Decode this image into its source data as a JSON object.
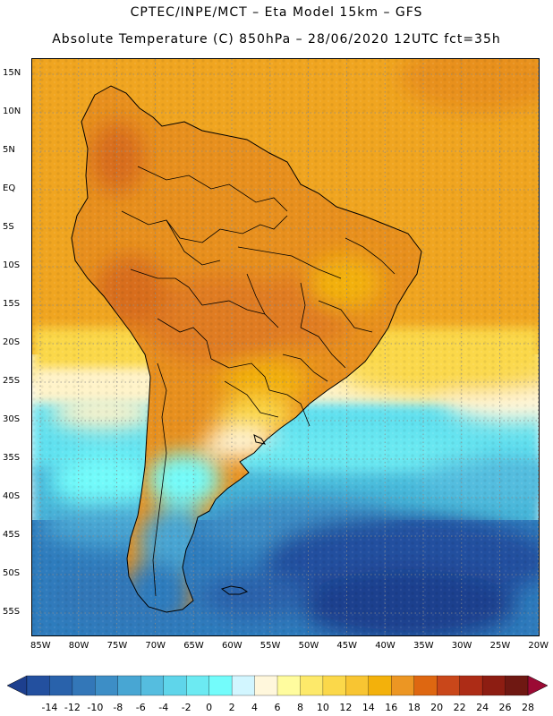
{
  "header": {
    "title_line1": "CPTEC/INPE/MCT –  Eta Model 15km – GFS",
    "title_line2": "Absolute Temperature (C) 850hPa – 28/06/2020 12UTC fct=35h"
  },
  "axes": {
    "latitudes": [
      "15N",
      "10N",
      "5N",
      "EQ",
      "5S",
      "10S",
      "15S",
      "20S",
      "25S",
      "30S",
      "35S",
      "40S",
      "45S",
      "50S",
      "55S"
    ],
    "longitudes": [
      "85W",
      "80W",
      "75W",
      "70W",
      "65W",
      "60W",
      "55W",
      "50W",
      "45W",
      "40W",
      "35W",
      "30W",
      "25W",
      "20W"
    ]
  },
  "colorbar": {
    "labels": [
      "-14",
      "-12",
      "-10",
      "-8",
      "-6",
      "-4",
      "-2",
      "0",
      "2",
      "4",
      "6",
      "8",
      "10",
      "12",
      "14",
      "16",
      "18",
      "20",
      "22",
      "24",
      "26",
      "28"
    ],
    "colors": [
      "#1d3f8e",
      "#23509f",
      "#2962ab",
      "#3377b8",
      "#3d8ec6",
      "#48a6d3",
      "#55bddf",
      "#5fd5ea",
      "#6ceaf2",
      "#73fcfb",
      "#d2f6ff",
      "#fff7dc",
      "#fffc9e",
      "#fde96a",
      "#fbd84a",
      "#f8c532",
      "#f3b10b",
      "#ec9623",
      "#de6711",
      "#c9471a",
      "#ad2c16",
      "#8d1d12",
      "#6f1812",
      "#9b0a34"
    ]
  },
  "map": {
    "colors": {
      "warm_deep": "#e07b22",
      "warm": "#f0a520",
      "yellow": "#fbd84a",
      "pale": "#fff3c9",
      "cyan": "#5fe0ef",
      "cyan_dark": "#45b6d9",
      "blue_mid": "#2f7cbd",
      "blue_dark": "#23509f",
      "navy": "#1d3f8e"
    }
  }
}
